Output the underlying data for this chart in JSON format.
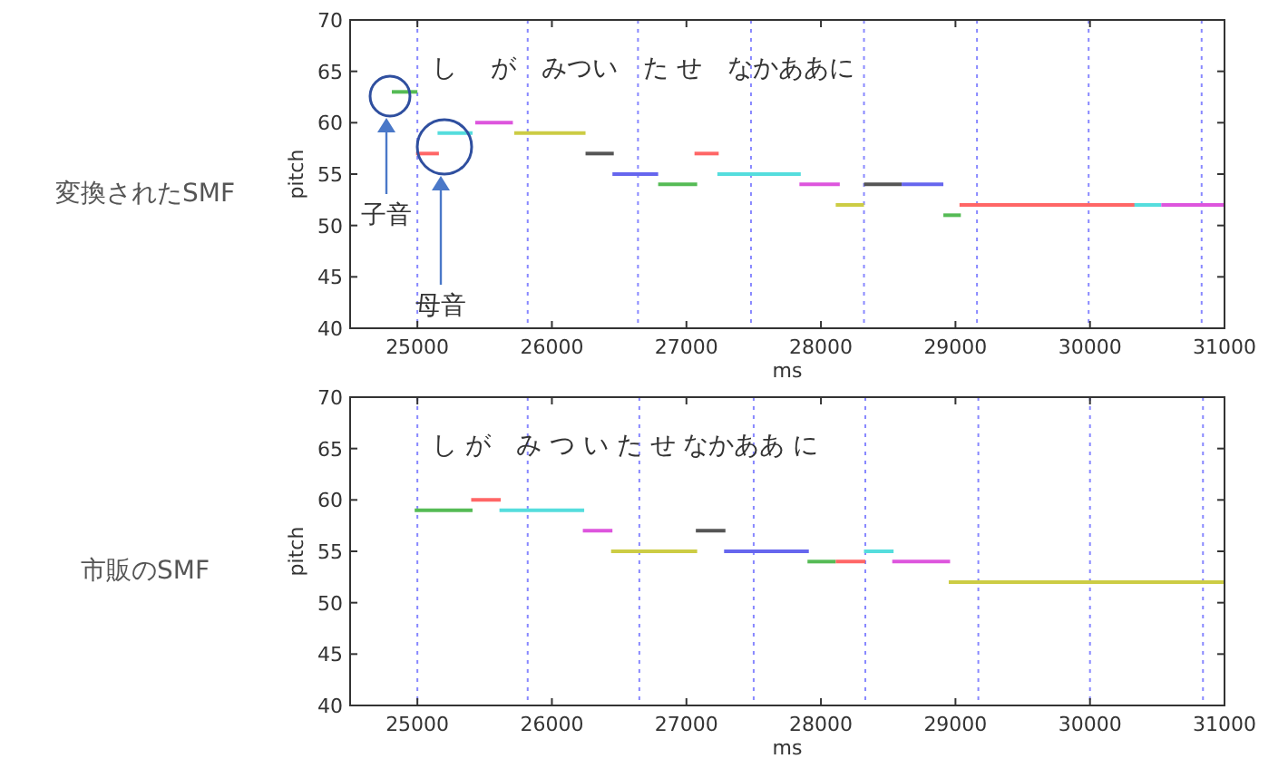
{
  "chart_data": [
    {
      "type": "line",
      "title": "変換されたSMF",
      "xlabel": "ms",
      "ylabel": "pitch",
      "xlim": [
        24500,
        31000
      ],
      "ylim": [
        40,
        70
      ],
      "xticks": [
        25000,
        26000,
        27000,
        28000,
        29000,
        30000,
        31000
      ],
      "yticks": [
        40,
        45,
        50,
        55,
        60,
        65,
        70
      ],
      "annotations": [
        "し　 が　みつい　た せ　なかああに",
        "子音",
        "母音"
      ],
      "ref_lines": [
        {
          "axis": "x",
          "value": 25000,
          "color": "#8888ff",
          "line_style": "dotted"
        },
        {
          "axis": "x",
          "value": 25820,
          "color": "#8888ff",
          "line_style": "dotted"
        },
        {
          "axis": "x",
          "value": 26640,
          "color": "#8888ff",
          "line_style": "dotted"
        },
        {
          "axis": "x",
          "value": 27480,
          "color": "#8888ff",
          "line_style": "dotted"
        },
        {
          "axis": "x",
          "value": 28320,
          "color": "#8888ff",
          "line_style": "dotted"
        },
        {
          "axis": "x",
          "value": 29160,
          "color": "#8888ff",
          "line_style": "dotted"
        },
        {
          "axis": "x",
          "value": 29990,
          "color": "#8888ff",
          "line_style": "dotted"
        },
        {
          "axis": "x",
          "value": 30830,
          "color": "#8888ff",
          "line_style": "dotted"
        }
      ],
      "series": [
        {
          "color": "#55bb55",
          "x": [
            24810,
            25000
          ],
          "values": [
            63,
            63
          ]
        },
        {
          "color": "#ff6666",
          "x": [
            24990,
            25160
          ],
          "values": [
            57,
            57
          ]
        },
        {
          "color": "#55dddd",
          "x": [
            25150,
            25410
          ],
          "values": [
            59,
            59
          ]
        },
        {
          "color": "#dd55dd",
          "x": [
            25430,
            25710
          ],
          "values": [
            60,
            60
          ]
        },
        {
          "color": "#cccc44",
          "x": [
            25720,
            26250
          ],
          "values": [
            59,
            59
          ]
        },
        {
          "color": "#555555",
          "x": [
            26250,
            26460
          ],
          "values": [
            57,
            57
          ]
        },
        {
          "color": "#6666ee",
          "x": [
            26450,
            26790
          ],
          "values": [
            55,
            55
          ]
        },
        {
          "color": "#55bb55",
          "x": [
            26790,
            27080
          ],
          "values": [
            54,
            54
          ]
        },
        {
          "color": "#ff6666",
          "x": [
            27060,
            27240
          ],
          "values": [
            57,
            57
          ]
        },
        {
          "color": "#55dddd",
          "x": [
            27230,
            27850
          ],
          "values": [
            55,
            55
          ]
        },
        {
          "color": "#dd55dd",
          "x": [
            27840,
            28140
          ],
          "values": [
            54,
            54
          ]
        },
        {
          "color": "#cccc44",
          "x": [
            28110,
            28320
          ],
          "values": [
            52,
            52
          ]
        },
        {
          "color": "#555555",
          "x": [
            28320,
            28600
          ],
          "values": [
            54,
            54
          ]
        },
        {
          "color": "#6666ee",
          "x": [
            28600,
            28910
          ],
          "values": [
            54,
            54
          ]
        },
        {
          "color": "#55bb55",
          "x": [
            28910,
            29040
          ],
          "values": [
            51,
            51
          ]
        },
        {
          "color": "#ff6666",
          "x": [
            29030,
            30340
          ],
          "values": [
            52,
            52
          ]
        },
        {
          "color": "#55dddd",
          "x": [
            30330,
            30530
          ],
          "values": [
            52,
            52
          ]
        },
        {
          "color": "#dd55dd",
          "x": [
            30530,
            31000
          ],
          "values": [
            52,
            52
          ]
        }
      ]
    },
    {
      "type": "line",
      "title": "市販のSMF",
      "xlabel": "ms",
      "ylabel": "pitch",
      "xlim": [
        24500,
        31000
      ],
      "ylim": [
        40,
        70
      ],
      "xticks": [
        25000,
        26000,
        27000,
        28000,
        29000,
        30000,
        31000
      ],
      "yticks": [
        40,
        45,
        50,
        55,
        60,
        65,
        70
      ],
      "annotations": [
        "し が　み つ い た せ なかああ に"
      ],
      "ref_lines": [
        {
          "axis": "x",
          "value": 25000,
          "color": "#8888ff",
          "line_style": "dotted"
        },
        {
          "axis": "x",
          "value": 25820,
          "color": "#8888ff",
          "line_style": "dotted"
        },
        {
          "axis": "x",
          "value": 26650,
          "color": "#8888ff",
          "line_style": "dotted"
        },
        {
          "axis": "x",
          "value": 27500,
          "color": "#8888ff",
          "line_style": "dotted"
        },
        {
          "axis": "x",
          "value": 28330,
          "color": "#8888ff",
          "line_style": "dotted"
        },
        {
          "axis": "x",
          "value": 29170,
          "color": "#8888ff",
          "line_style": "dotted"
        },
        {
          "axis": "x",
          "value": 30000,
          "color": "#8888ff",
          "line_style": "dotted"
        },
        {
          "axis": "x",
          "value": 30840,
          "color": "#8888ff",
          "line_style": "dotted"
        }
      ],
      "series": [
        {
          "color": "#55bb55",
          "x": [
            24980,
            25410
          ],
          "values": [
            59,
            59
          ]
        },
        {
          "color": "#ff6666",
          "x": [
            25400,
            25620
          ],
          "values": [
            60,
            60
          ]
        },
        {
          "color": "#55dddd",
          "x": [
            25610,
            26240
          ],
          "values": [
            59,
            59
          ]
        },
        {
          "color": "#dd55dd",
          "x": [
            26230,
            26450
          ],
          "values": [
            57,
            57
          ]
        },
        {
          "color": "#cccc44",
          "x": [
            26440,
            27080
          ],
          "values": [
            55,
            55
          ]
        },
        {
          "color": "#555555",
          "x": [
            27070,
            27290
          ],
          "values": [
            57,
            57
          ]
        },
        {
          "color": "#6666ee",
          "x": [
            27280,
            27910
          ],
          "values": [
            55,
            55
          ]
        },
        {
          "color": "#55bb55",
          "x": [
            27900,
            28110
          ],
          "values": [
            54,
            54
          ]
        },
        {
          "color": "#ff6666",
          "x": [
            28110,
            28330
          ],
          "values": [
            54,
            54
          ]
        },
        {
          "color": "#55dddd",
          "x": [
            28320,
            28540
          ],
          "values": [
            55,
            55
          ]
        },
        {
          "color": "#dd55dd",
          "x": [
            28530,
            28960
          ],
          "values": [
            54,
            54
          ]
        },
        {
          "color": "#cccc44",
          "x": [
            28950,
            31000
          ],
          "values": [
            52,
            52
          ]
        }
      ]
    }
  ]
}
